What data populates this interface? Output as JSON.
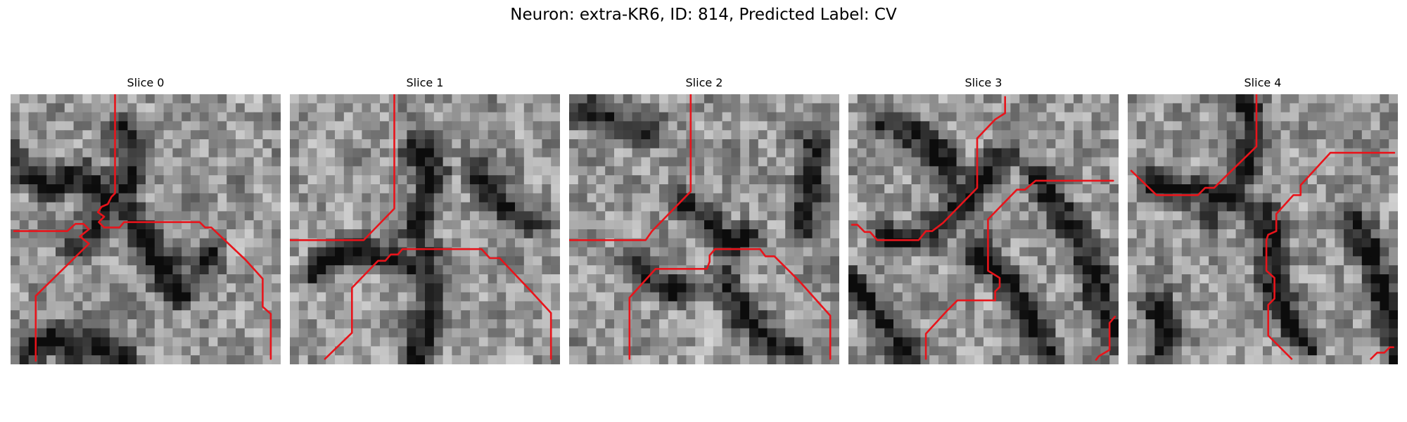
{
  "figure": {
    "title": "Neuron: extra-KR6, ID: 814, Predicted Label: CV",
    "colors": {
      "contour": "#e8141b",
      "background": "#ffffff"
    },
    "panels": [
      {
        "title": "Slice 0",
        "grid_size": 30,
        "dark_lines": [
          [
            [
              0,
              7
            ],
            [
              4,
              10
            ],
            [
              8,
              9
            ],
            [
              12,
              12
            ],
            [
              16,
              17
            ],
            [
              19,
              22
            ]
          ],
          [
            [
              12,
              4
            ],
            [
              14,
              8
            ],
            [
              12,
              11
            ],
            [
              10,
              14
            ],
            [
              7,
              17
            ]
          ],
          [
            [
              2,
              29
            ],
            [
              4,
              27
            ],
            [
              8,
              28
            ],
            [
              12,
              29
            ]
          ],
          [
            [
              15,
              17
            ],
            [
              17,
              20
            ],
            [
              20,
              21
            ],
            [
              22,
              18
            ]
          ]
        ],
        "paths": [
          [
            [
              11.6,
              0
            ],
            [
              11.6,
              11
            ],
            [
              11.2,
              11.4
            ],
            [
              10.8,
              12.2
            ],
            [
              10.1,
              12.5
            ],
            [
              9.7,
              13.1
            ],
            [
              10.4,
              13.6
            ],
            [
              9.8,
              14.2
            ],
            [
              10.4,
              14.8
            ],
            [
              12.1,
              14.8
            ],
            [
              12.6,
              14.2
            ],
            [
              14.9,
              14.2
            ],
            [
              21,
              14.2
            ],
            [
              21.6,
              14.8
            ],
            [
              22.3,
              14.8
            ],
            [
              26.1,
              18.4
            ],
            [
              28,
              20.5
            ],
            [
              28,
              23.6
            ],
            [
              28.9,
              24.4
            ],
            [
              28.9,
              29.4
            ]
          ],
          [
            [
              0.4,
              15.2
            ],
            [
              6.3,
              15.2
            ],
            [
              7.2,
              14.4
            ],
            [
              8.1,
              14.4
            ],
            [
              8.7,
              15
            ],
            [
              7.7,
              15.8
            ],
            [
              8.7,
              16.6
            ],
            [
              2.8,
              22.4
            ],
            [
              2.8,
              29.6
            ]
          ]
        ]
      },
      {
        "title": "Slice 1",
        "grid_size": 30,
        "dark_lines": [
          [
            [
              14,
              6
            ],
            [
              16,
              9
            ],
            [
              15,
              13
            ],
            [
              14,
              16
            ]
          ],
          [
            [
              15,
              18
            ],
            [
              16,
              22
            ],
            [
              15,
              26
            ],
            [
              14,
              29
            ]
          ],
          [
            [
              3,
              20
            ],
            [
              6,
              17
            ],
            [
              10,
              18
            ],
            [
              13,
              19
            ]
          ],
          [
            [
              21,
              9
            ],
            [
              24,
              13
            ],
            [
              27,
              14
            ]
          ]
        ],
        "paths": [
          [
            [
              11.6,
              0
            ],
            [
              11.6,
              12.7
            ],
            [
              8.2,
              16.2
            ],
            [
              0,
              16.2
            ]
          ],
          [
            [
              3.9,
              29.4
            ],
            [
              6.9,
              26.5
            ],
            [
              6.9,
              21.5
            ],
            [
              9.8,
              18.5
            ],
            [
              10.6,
              18.5
            ],
            [
              11.2,
              17.8
            ],
            [
              12,
              17.8
            ],
            [
              12.5,
              17.2
            ],
            [
              21.3,
              17.2
            ],
            [
              22.2,
              18.2
            ],
            [
              23.3,
              18.2
            ],
            [
              26.8,
              21.9
            ],
            [
              29,
              24.3
            ],
            [
              29,
              29.4
            ]
          ]
        ]
      },
      {
        "title": "Slice 2",
        "grid_size": 30,
        "dark_lines": [
          [
            [
              0,
              1
            ],
            [
              3,
              2
            ],
            [
              6,
              4
            ],
            [
              9,
              4
            ]
          ],
          [
            [
              13,
              12
            ],
            [
              16,
              15
            ],
            [
              18,
              17
            ],
            [
              20,
              16
            ]
          ],
          [
            [
              7,
              18
            ],
            [
              9,
              21
            ],
            [
              12,
              22
            ]
          ],
          [
            [
              17,
              20
            ],
            [
              19,
              24
            ],
            [
              22,
              27
            ],
            [
              25,
              29
            ]
          ],
          [
            [
              27,
              6
            ],
            [
              27,
              11
            ],
            [
              26,
              15
            ]
          ]
        ],
        "paths": [
          [
            [
              13.5,
              0
            ],
            [
              13.5,
              10.8
            ],
            [
              9.2,
              15.2
            ],
            [
              8.5,
              16.2
            ],
            [
              0,
              16.2
            ]
          ],
          [
            [
              6.7,
              29.4
            ],
            [
              6.7,
              22.6
            ],
            [
              9.6,
              19.4
            ],
            [
              15.3,
              19.4
            ],
            [
              15.6,
              18.6
            ],
            [
              15.6,
              17.9
            ],
            [
              16.2,
              17.2
            ],
            [
              21.2,
              17.2
            ],
            [
              21.8,
              18
            ],
            [
              22.8,
              18
            ],
            [
              25.6,
              20.8
            ],
            [
              29,
              24.6
            ],
            [
              29,
              29.4
            ]
          ]
        ]
      },
      {
        "title": "Slice 3",
        "grid_size": 30,
        "dark_lines": [
          [
            [
              0,
              21
            ],
            [
              4,
              25
            ],
            [
              7,
              29
            ]
          ],
          [
            [
              4,
              16
            ],
            [
              8,
              16
            ],
            [
              11,
              14
            ],
            [
              14,
              10
            ],
            [
              17,
              7
            ]
          ],
          [
            [
              21,
              9
            ],
            [
              23,
              12
            ],
            [
              25,
              15
            ],
            [
              27,
              19
            ],
            [
              28,
              23
            ],
            [
              30,
              27
            ]
          ],
          [
            [
              14,
              17
            ],
            [
              17,
              20
            ],
            [
              20,
              25
            ],
            [
              22,
              29
            ]
          ],
          [
            [
              4,
              3
            ],
            [
              8,
              5
            ],
            [
              11,
              8
            ]
          ]
        ],
        "paths": [
          [
            [
              17.4,
              0.3
            ],
            [
              17.4,
              2.1
            ],
            [
              16.3,
              2.8
            ],
            [
              14.3,
              4.9
            ],
            [
              14.3,
              10.4
            ],
            [
              10.5,
              14.3
            ],
            [
              9.3,
              15.2
            ],
            [
              8.6,
              15.2
            ],
            [
              7.8,
              16.2
            ],
            [
              3.2,
              16.2
            ],
            [
              2.4,
              15.3
            ],
            [
              1.8,
              15.3
            ],
            [
              1,
              14.5
            ],
            [
              0.4,
              14.5
            ]
          ],
          [
            [
              29.6,
              24.7
            ],
            [
              29,
              25.4
            ],
            [
              29,
              28.4
            ],
            [
              27.8,
              29.1
            ],
            [
              27.5,
              29.5
            ]
          ],
          [
            [
              8.6,
              29.4
            ],
            [
              8.6,
              26.6
            ],
            [
              10.9,
              24.1
            ],
            [
              12.1,
              22.9
            ],
            [
              16.3,
              22.9
            ],
            [
              16.3,
              21.9
            ],
            [
              16.8,
              21.4
            ],
            [
              16.8,
              20.4
            ],
            [
              15.5,
              19.6
            ],
            [
              15.5,
              13.9
            ],
            [
              18.7,
              10.6
            ],
            [
              19.6,
              10.6
            ],
            [
              20.8,
              9.6
            ],
            [
              29.4,
              9.6
            ]
          ]
        ]
      },
      {
        "title": "Slice 4",
        "grid_size": 30,
        "dark_lines": [
          [
            [
              13,
              0
            ],
            [
              14,
              4
            ],
            [
              13,
              8
            ],
            [
              11,
              11
            ],
            [
              9,
              13
            ]
          ],
          [
            [
              25,
              14
            ],
            [
              27,
              17
            ],
            [
              28,
              21
            ],
            [
              29,
              25
            ],
            [
              30,
              29
            ]
          ],
          [
            [
              3,
              23
            ],
            [
              4,
              26
            ],
            [
              4,
              29
            ]
          ],
          [
            [
              15,
              13
            ],
            [
              16,
              17
            ],
            [
              16,
              21
            ],
            [
              18,
              25
            ],
            [
              20,
              28
            ]
          ],
          [
            [
              3,
              10
            ],
            [
              6,
              11
            ],
            [
              9,
              11
            ]
          ]
        ],
        "paths": [
          [
            [
              0.4,
              8.5
            ],
            [
              3.2,
              11.2
            ],
            [
              7.8,
              11.2
            ],
            [
              8.6,
              10.4
            ],
            [
              9.6,
              10.4
            ],
            [
              10.5,
              9.5
            ],
            [
              14.3,
              5.8
            ],
            [
              14.3,
              0
            ]
          ],
          [
            [
              29.6,
              6.5
            ],
            [
              22.5,
              6.5
            ],
            [
              19.2,
              10.1
            ],
            [
              19.2,
              11.2
            ],
            [
              18.4,
              11.2
            ],
            [
              16.5,
              13.3
            ],
            [
              16.5,
              15.2
            ],
            [
              15.6,
              15.6
            ],
            [
              15.4,
              16.2
            ],
            [
              15.4,
              19.6
            ],
            [
              16.3,
              20.4
            ],
            [
              16.3,
              22.7
            ],
            [
              15.6,
              23.4
            ],
            [
              15.6,
              26.8
            ],
            [
              18.2,
              29.4
            ]
          ],
          [
            [
              27,
              29.4
            ],
            [
              27.7,
              28.7
            ],
            [
              28.5,
              28.7
            ],
            [
              29.1,
              28.1
            ],
            [
              29.5,
              28.1
            ]
          ]
        ]
      }
    ]
  }
}
